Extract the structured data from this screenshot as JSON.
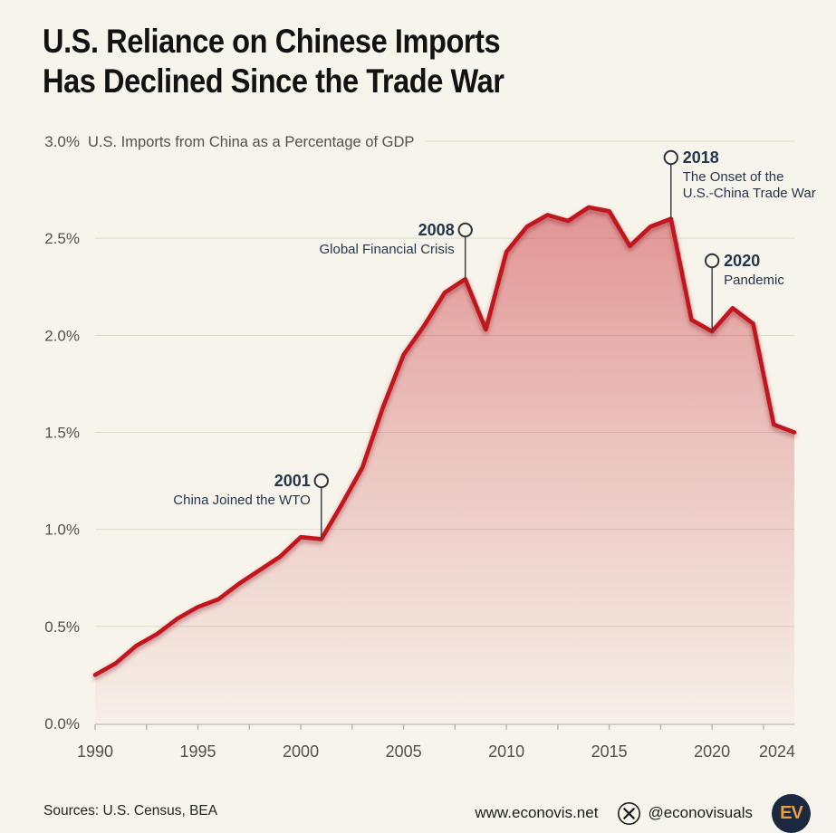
{
  "title": {
    "line1": "U.S. Reliance on Chinese Imports",
    "line2": "Has Declined Since the Trade War"
  },
  "subtitle": "U.S. Imports from China as a Percentage of GDP",
  "y_axis": {
    "top_label": "3.0%",
    "ticks": [
      "0.0%",
      "0.5%",
      "1.0%",
      "1.5%",
      "2.0%",
      "2.5%"
    ]
  },
  "x_axis": {
    "ticks": [
      1990,
      1995,
      2000,
      2005,
      2010,
      2015,
      2020,
      2024
    ]
  },
  "chart_data": {
    "type": "area",
    "title": "U.S. Reliance on Chinese Imports Has Declined Since the Trade War",
    "ylabel": "U.S. Imports from China as a Percentage of GDP",
    "unit": "%",
    "xlim": [
      1990,
      2024
    ],
    "ylim": [
      0,
      3.0
    ],
    "grid": "horizontal",
    "x": [
      1990,
      1991,
      1992,
      1993,
      1994,
      1995,
      1996,
      1997,
      1998,
      1999,
      2000,
      2001,
      2002,
      2003,
      2004,
      2005,
      2006,
      2007,
      2008,
      2009,
      2010,
      2011,
      2012,
      2013,
      2014,
      2015,
      2016,
      2017,
      2018,
      2019,
      2020,
      2021,
      2022,
      2023,
      2024
    ],
    "values": [
      0.25,
      0.31,
      0.4,
      0.46,
      0.54,
      0.6,
      0.64,
      0.72,
      0.79,
      0.86,
      0.96,
      0.95,
      1.13,
      1.32,
      1.63,
      1.9,
      2.05,
      2.22,
      2.29,
      2.03,
      2.43,
      2.56,
      2.62,
      2.59,
      2.66,
      2.64,
      2.46,
      2.56,
      2.6,
      2.08,
      2.02,
      2.14,
      2.06,
      1.54,
      1.5
    ],
    "annotations": [
      {
        "year": 2001,
        "value": 0.95,
        "label": "2001",
        "lines": [
          "China Joined the WTO"
        ],
        "side": "left"
      },
      {
        "year": 2008,
        "value": 2.29,
        "label": "2008",
        "lines": [
          "Global Financial Crisis"
        ],
        "side": "left"
      },
      {
        "year": 2018,
        "value": 2.6,
        "label": "2018",
        "lines": [
          "The Onset of the",
          "U.S.-China Trade War"
        ],
        "side": "right"
      },
      {
        "year": 2020,
        "value": 2.02,
        "label": "2020",
        "lines": [
          "Pandemic"
        ],
        "side": "right"
      }
    ],
    "colors": {
      "line": "#c1121c",
      "area_top": "rgba(193,18,28,0.42)",
      "area_bottom": "rgba(193,18,28,0)",
      "annotation_text": "#24364b",
      "background": "#f7f4ec"
    }
  },
  "footer": {
    "sources": "Sources: U.S. Census, BEA",
    "website": "www.econovis.net",
    "handle": "@econovisuals",
    "logo_text": "EV"
  }
}
